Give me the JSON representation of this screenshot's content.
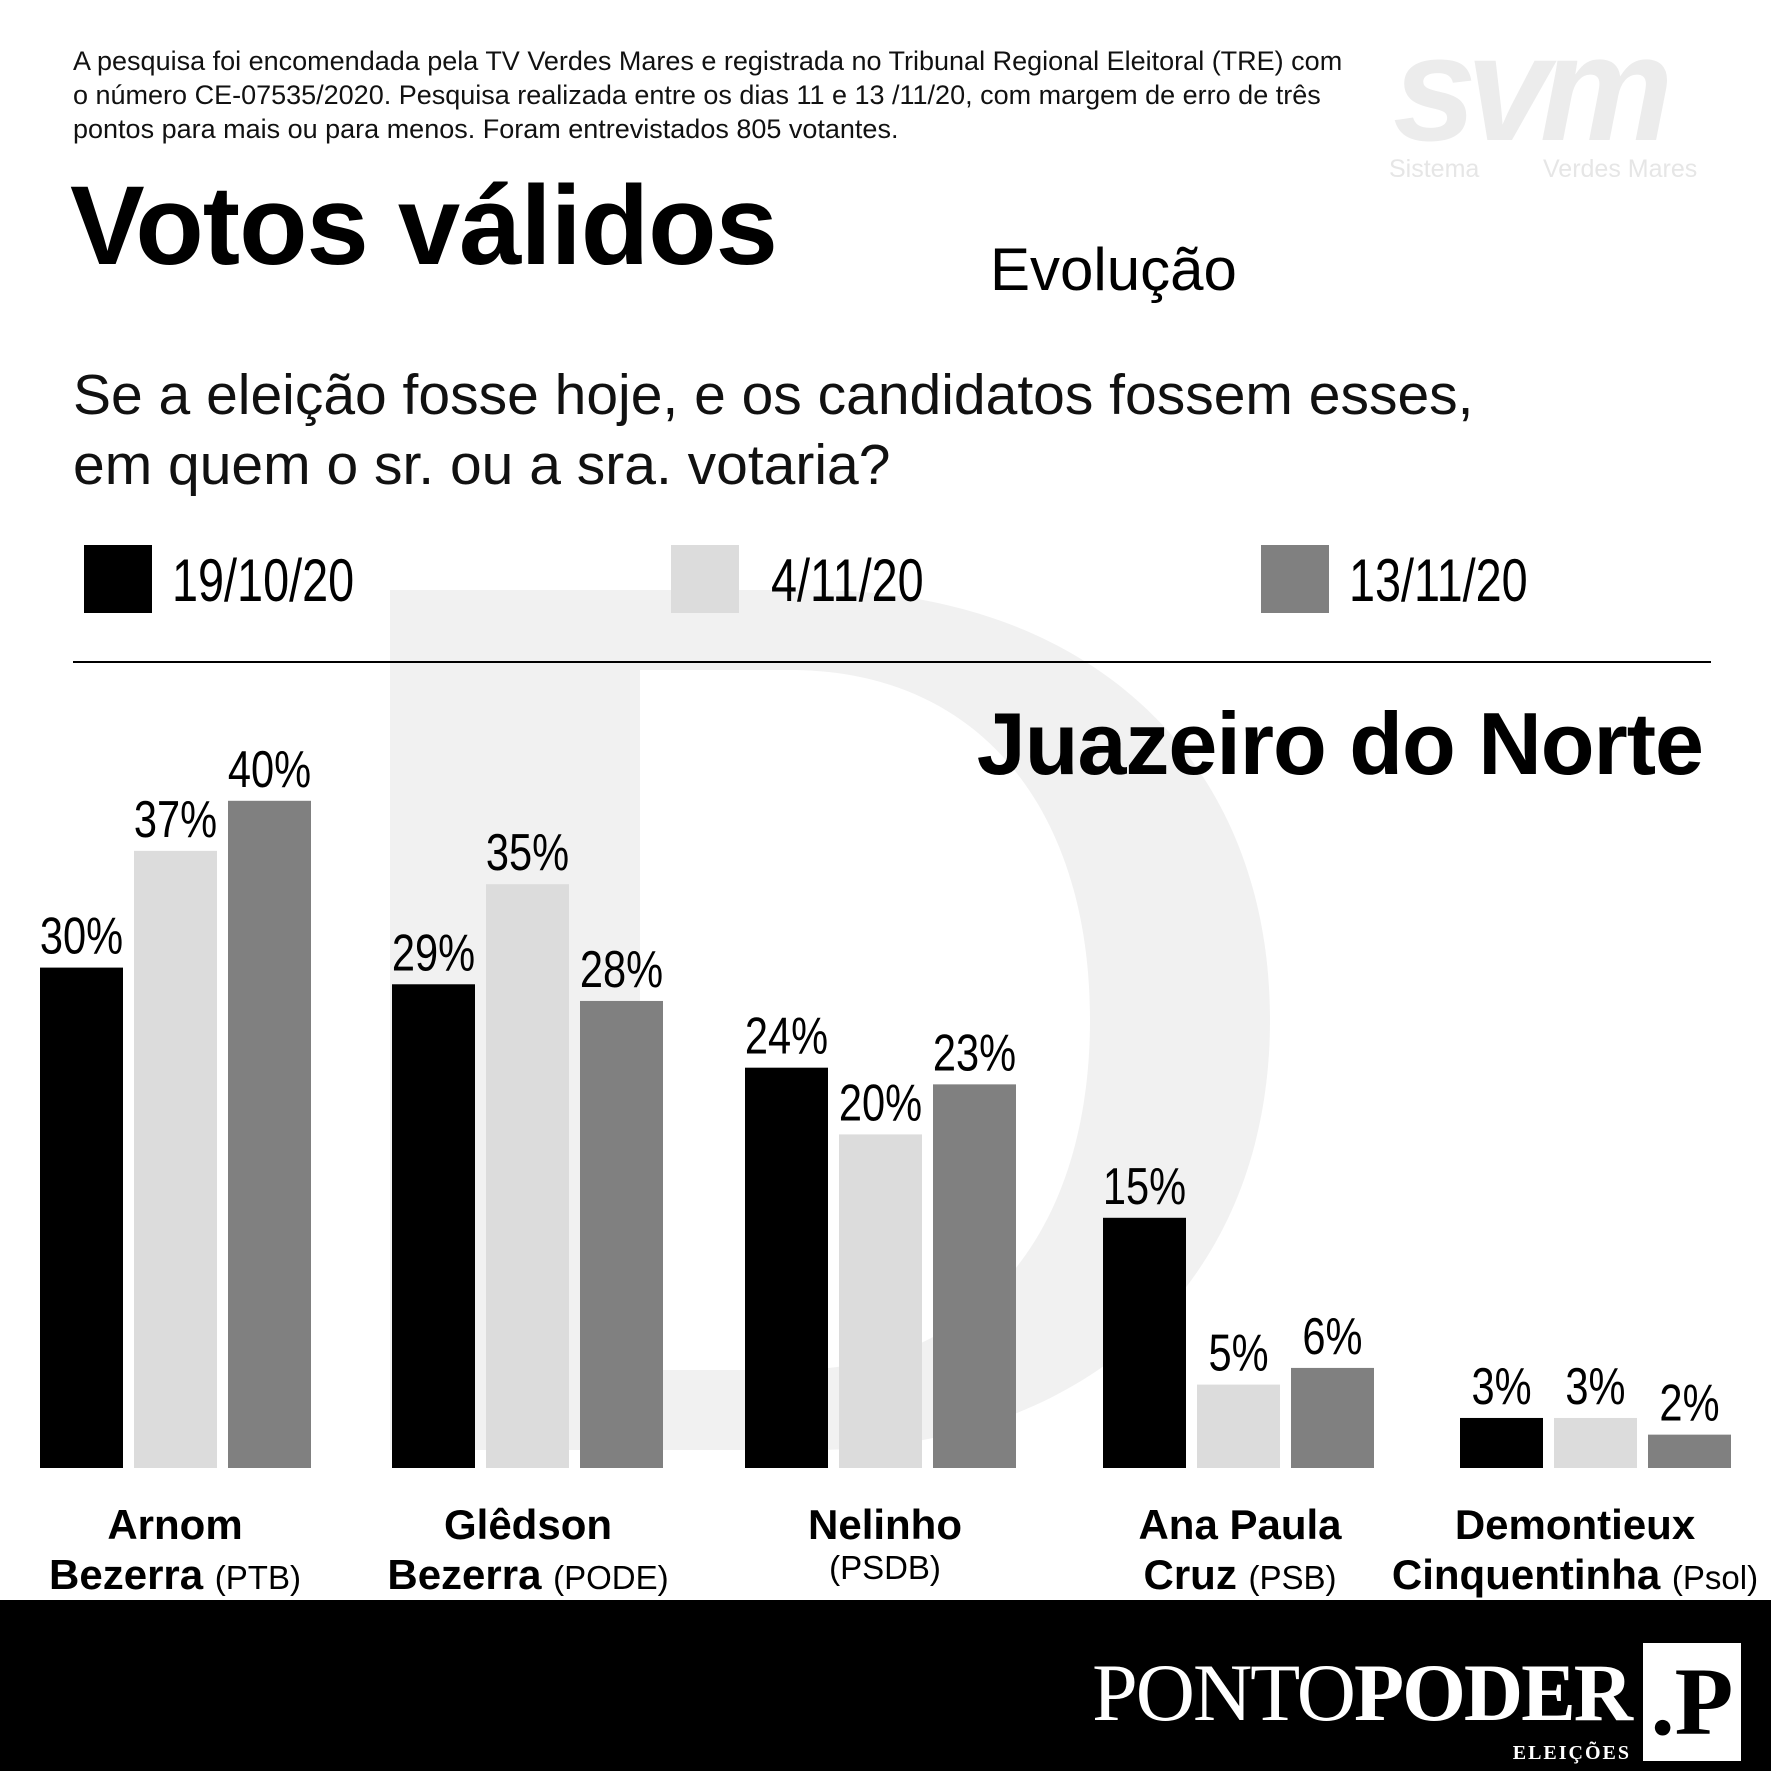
{
  "header": {
    "source_note": "A pesquisa foi encomendada pela TV Verdes Mares e registrada no Tribunal Regional Eleitoral (TRE) com o número CE-07535/2020. Pesquisa realizada entre os dias 11 e 13 /11/20, com margem de erro de três pontos para mais ou para menos. Foram entrevistados 805 votantes.",
    "logo_text_left": "Sistema",
    "logo_text_right": "Verdes Mares",
    "logo_mark": "svm",
    "question": "Se a eleição fosse hoje, e os candidatos fossem esses, em quem o sr. ou a sra. votaria?"
  },
  "colors": {
    "series_1": "#000000",
    "series_2": "#dcdcdc",
    "series_3": "#808080",
    "footer": "#000000",
    "watermark": "#f0f0f0"
  },
  "chart_data": {
    "type": "bar",
    "title": "Votos válidos",
    "subtitle": "Evolução",
    "region": "Juazeiro do Norte",
    "categories": [
      "Arnom Bezerra (PTB)",
      "Glêdson Bezerra (PODE)",
      "Nelinho (PSDB)",
      "Ana Paula Cruz (PSB)",
      "Demontieux Cinquentinha (Psol)"
    ],
    "candidates": [
      {
        "name_line1": "Arnom",
        "name_line2": "Bezerra",
        "party": "(PTB)"
      },
      {
        "name_line1": "Glêdson",
        "name_line2": "Bezerra",
        "party": "(PODE)"
      },
      {
        "name_line1": "Nelinho",
        "name_line2": "",
        "party": "(PSDB)"
      },
      {
        "name_line1": "Ana Paula",
        "name_line2": "Cruz",
        "party": "(PSB)"
      },
      {
        "name_line1": "Demontieux",
        "name_line2": "Cinquentinha",
        "party": "(Psol)"
      }
    ],
    "series": [
      {
        "name": "19/10/20",
        "values": [
          30,
          29,
          24,
          15,
          3
        ]
      },
      {
        "name": "4/11/20",
        "values": [
          37,
          35,
          20,
          5,
          3
        ]
      },
      {
        "name": "13/11/20",
        "values": [
          40,
          28,
          23,
          6,
          2
        ]
      }
    ],
    "value_suffix": "%",
    "ylim": [
      0,
      40
    ],
    "grid": false,
    "legend_position": "top"
  },
  "footer": {
    "brand_light": "PONTO",
    "brand_bold": "PODER",
    "brand_sub": "ELEIÇÕES",
    "brand_mark": ".P"
  }
}
